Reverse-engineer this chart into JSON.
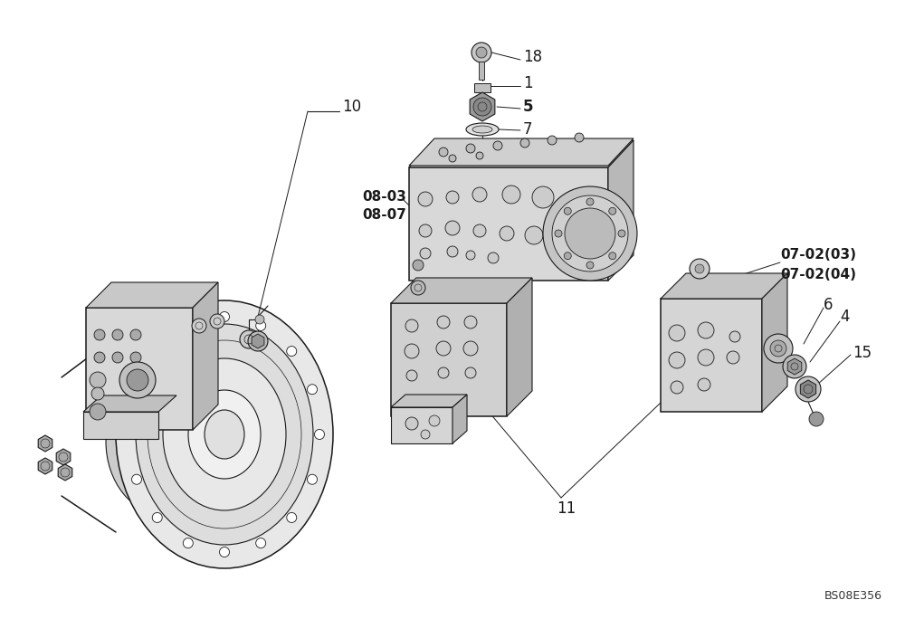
{
  "fig_width": 10.0,
  "fig_height": 6.84,
  "dpi": 100,
  "bg_color": "#ffffff",
  "watermark": "BS08E356",
  "line_color": "#1a1a1a",
  "fill_light": "#e8e8e8",
  "fill_mid": "#d0d0d0",
  "fill_dark": "#aaaaaa"
}
